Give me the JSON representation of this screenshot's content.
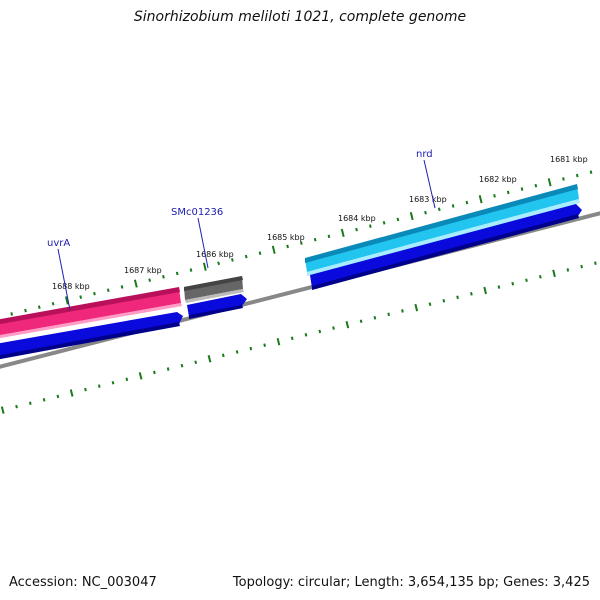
{
  "title": "Sinorhizobium meliloti 1021, complete genome",
  "footer": {
    "accession": "Accession: NC_003047",
    "summary": "Topology: circular; Length: 3,654,135 bp; Genes: 3,425"
  },
  "colors": {
    "gene_uvrA": "#f0287c",
    "gene_SMc01236": "#666666",
    "gene_nrd": "#22c4f0",
    "cds": "#0a0adc",
    "backbone": "#888888",
    "tick": "#1a7a1a",
    "label": "#2020b0"
  },
  "ticks": [
    {
      "label": "1681 kbp"
    },
    {
      "label": "1682 kbp"
    },
    {
      "label": "1683 kbp"
    },
    {
      "label": "1684 kbp"
    },
    {
      "label": "1685 kbp"
    },
    {
      "label": "1686 kbp"
    },
    {
      "label": "1687 kbp"
    },
    {
      "label": "1688 kbp"
    }
  ],
  "genes": [
    {
      "name": "uvrA"
    },
    {
      "name": "SMc01236"
    },
    {
      "name": "nrd"
    }
  ]
}
